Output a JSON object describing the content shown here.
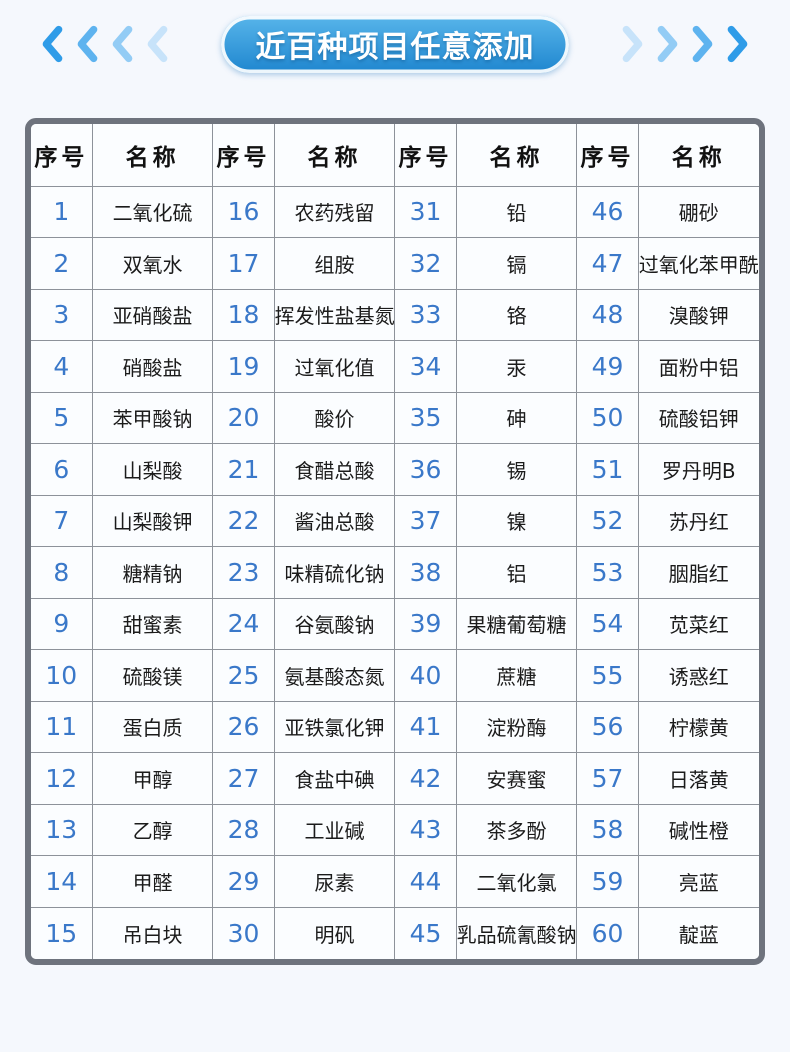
{
  "banner": {
    "title": "近百种项目任意添加",
    "left_chevron_count": 4,
    "right_chevron_count": 4
  },
  "colors": {
    "page_bg": "#f5f8fd",
    "pill_top": "#58b5ea",
    "pill_bottom": "#1f86cf",
    "table_border": "#6e737d",
    "cell_border": "#8d929a",
    "number_blue": "#3a78c9",
    "chevron_shades": [
      "#2f9ce8",
      "#5eb3ef",
      "#93ccf5",
      "#c7e3fa"
    ]
  },
  "table": {
    "column_headers": [
      "序号",
      "名称",
      "序号",
      "名称",
      "序号",
      "名称",
      "序号",
      "名称"
    ],
    "rows": [
      [
        "1",
        "二氧化硫",
        "16",
        "农药残留",
        "31",
        "铅",
        "46",
        "硼砂"
      ],
      [
        "2",
        "双氧水",
        "17",
        "组胺",
        "32",
        "镉",
        "47",
        "过氧化苯甲酰"
      ],
      [
        "3",
        "亚硝酸盐",
        "18",
        "挥发性盐基氮",
        "33",
        "铬",
        "48",
        "溴酸钾"
      ],
      [
        "4",
        "硝酸盐",
        "19",
        "过氧化值",
        "34",
        "汞",
        "49",
        "面粉中铝"
      ],
      [
        "5",
        "苯甲酸钠",
        "20",
        "酸价",
        "35",
        "砷",
        "50",
        "硫酸铝钾"
      ],
      [
        "6",
        "山梨酸",
        "21",
        "食醋总酸",
        "36",
        "锡",
        "51",
        "罗丹明B"
      ],
      [
        "7",
        "山梨酸钾",
        "22",
        "酱油总酸",
        "37",
        "镍",
        "52",
        "苏丹红"
      ],
      [
        "8",
        "糖精钠",
        "23",
        "味精硫化钠",
        "38",
        "铝",
        "53",
        "胭脂红"
      ],
      [
        "9",
        "甜蜜素",
        "24",
        "谷氨酸钠",
        "39",
        "果糖葡萄糖",
        "54",
        "苋菜红"
      ],
      [
        "10",
        "硫酸镁",
        "25",
        "氨基酸态氮",
        "40",
        "蔗糖",
        "55",
        "诱惑红"
      ],
      [
        "11",
        "蛋白质",
        "26",
        "亚铁氯化钾",
        "41",
        "淀粉酶",
        "56",
        "柠檬黄"
      ],
      [
        "12",
        "甲醇",
        "27",
        "食盐中碘",
        "42",
        "安赛蜜",
        "57",
        "日落黄"
      ],
      [
        "13",
        "乙醇",
        "28",
        "工业碱",
        "43",
        "茶多酚",
        "58",
        "碱性橙"
      ],
      [
        "14",
        "甲醛",
        "29",
        "尿素",
        "44",
        "二氧化氯",
        "59",
        "亮蓝"
      ],
      [
        "15",
        "吊白块",
        "30",
        "明矾",
        "45",
        "乳品硫氰酸钠",
        "60",
        "靛蓝"
      ]
    ]
  }
}
